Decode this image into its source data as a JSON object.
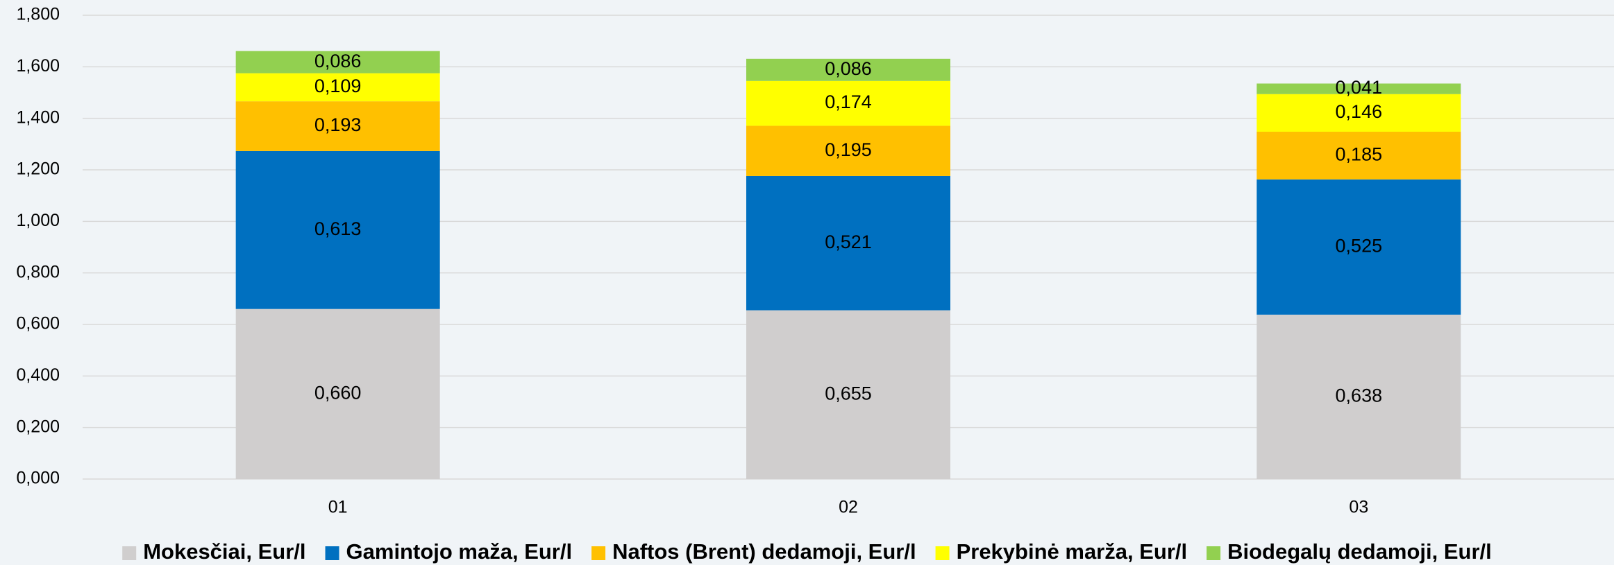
{
  "chart_data": {
    "type": "stacked_bar",
    "categories": [
      "01",
      "02",
      "03"
    ],
    "series": [
      {
        "name": "Mokesčiai, Eur/l",
        "color": "#d0cece",
        "values": [
          0.66,
          0.655,
          0.638
        ],
        "value_labels": [
          "0,660",
          "0,655",
          "0,638"
        ]
      },
      {
        "name": "Gamintojo maža, Eur/l",
        "color": "#0070c0",
        "values": [
          0.613,
          0.521,
          0.525
        ],
        "value_labels": [
          "0,613",
          "0,521",
          "0,525"
        ]
      },
      {
        "name": "Naftos (Brent) dedamoji, Eur/l",
        "color": "#ffc000",
        "values": [
          0.193,
          0.195,
          0.185
        ],
        "value_labels": [
          "0,193",
          "0,195",
          "0,185"
        ]
      },
      {
        "name": "Prekybinė marža, Eur/l",
        "color": "#ffff00",
        "values": [
          0.109,
          0.174,
          0.146
        ],
        "value_labels": [
          "0,109",
          "0,174",
          "0,146"
        ]
      },
      {
        "name": "Biodegalų dedamoji, Eur/l",
        "color": "#92d050",
        "values": [
          0.086,
          0.086,
          0.041
        ],
        "value_labels": [
          "0,086",
          "0,086",
          "0,041"
        ]
      }
    ],
    "ylim": [
      0,
      1.8
    ],
    "yticks": [
      {
        "value": 0,
        "label": "0,000"
      },
      {
        "value": 0.2,
        "label": "0,200"
      },
      {
        "value": 0.4,
        "label": "0,400"
      },
      {
        "value": 0.6,
        "label": "0,600"
      },
      {
        "value": 0.8,
        "label": "0,800"
      },
      {
        "value": 1.0,
        "label": "1,000"
      },
      {
        "value": 1.2,
        "label": "1,200"
      },
      {
        "value": 1.4,
        "label": "1,400"
      },
      {
        "value": 1.6,
        "label": "1,600"
      },
      {
        "value": 1.8,
        "label": "1,800"
      }
    ],
    "grid": true,
    "legend": "bottom"
  }
}
